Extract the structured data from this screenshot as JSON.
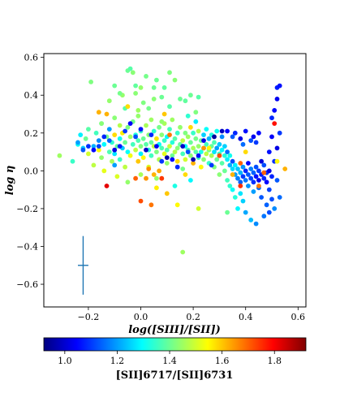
{
  "chart_data": {
    "type": "scatter",
    "xlabel": "log([SIII]/[SII])",
    "ylabel": "log η",
    "xlim": [
      -0.37,
      0.63
    ],
    "ylim": [
      -0.72,
      0.62
    ],
    "xticks": [
      -0.2,
      0.0,
      0.2,
      0.4,
      0.6
    ],
    "xtick_labels": [
      "−0.2",
      "0.0",
      "0.2",
      "0.4",
      "0.6"
    ],
    "yticks": [
      -0.6,
      -0.4,
      -0.2,
      0.0,
      0.2,
      0.4,
      0.6
    ],
    "ytick_labels": [
      "−0.6",
      "−0.4",
      "−0.2",
      "0.0",
      "0.2",
      "0.4",
      "0.6"
    ],
    "grid": false,
    "colormap": "jet",
    "colorbar": {
      "label": "[SII]6717/[SII]6731",
      "range": [
        0.92,
        1.92
      ],
      "ticks": [
        1.0,
        1.2,
        1.4,
        1.6,
        1.8
      ],
      "tick_labels": [
        "1.0",
        "1.2",
        "1.4",
        "1.6",
        "1.8"
      ],
      "position": "bottom"
    },
    "error_bar": {
      "x": -0.22,
      "y": -0.5,
      "xerr": 0.02,
      "yerr": 0.155,
      "color": "#1f77b4"
    },
    "points": [
      [
        -0.31,
        0.08,
        1.45
      ],
      [
        -0.26,
        0.05,
        1.35
      ],
      [
        -0.24,
        0.14,
        1.3
      ],
      [
        -0.23,
        0.19,
        1.28
      ],
      [
        -0.22,
        0.12,
        1.25
      ],
      [
        -0.21,
        0.17,
        1.4
      ],
      [
        -0.2,
        0.09,
        1.5
      ],
      [
        -0.2,
        0.22,
        1.38
      ],
      [
        -0.19,
        0.47,
        1.42
      ],
      [
        -0.18,
        0.13,
        1.22
      ],
      [
        -0.18,
        0.03,
        1.48
      ],
      [
        -0.17,
        0.2,
        1.36
      ],
      [
        -0.16,
        0.11,
        1.55
      ],
      [
        -0.16,
        0.16,
        1.18
      ],
      [
        -0.15,
        0.07,
        1.44
      ],
      [
        -0.15,
        0.25,
        1.33
      ],
      [
        -0.14,
        0.14,
        1.29
      ],
      [
        -0.14,
        0.0,
        1.52
      ],
      [
        -0.13,
        0.18,
        1.41
      ],
      [
        -0.13,
        0.3,
        1.62
      ],
      [
        -0.12,
        0.1,
        1.37
      ],
      [
        -0.12,
        0.22,
        1.2
      ],
      [
        -0.11,
        0.05,
        1.46
      ],
      [
        -0.11,
        0.15,
        1.34
      ],
      [
        -0.1,
        0.19,
        1.58
      ],
      [
        -0.1,
        0.09,
        1.27
      ],
      [
        -0.1,
        0.28,
        1.43
      ],
      [
        -0.09,
        0.13,
        1.39
      ],
      [
        -0.09,
        -0.03,
        1.51
      ],
      [
        -0.08,
        0.17,
        1.31
      ],
      [
        -0.08,
        0.24,
        1.47
      ],
      [
        -0.08,
        0.06,
        1.35
      ],
      [
        -0.07,
        0.4,
        1.44
      ],
      [
        -0.07,
        0.12,
        1.24
      ],
      [
        -0.07,
        0.2,
        1.56
      ],
      [
        -0.06,
        0.15,
        1.4
      ],
      [
        -0.06,
        0.02,
        1.48
      ],
      [
        -0.06,
        0.33,
        1.38
      ],
      [
        -0.05,
        0.1,
        1.3
      ],
      [
        -0.05,
        0.23,
        1.42
      ],
      [
        -0.05,
        0.53,
        1.4
      ],
      [
        -0.04,
        0.54,
        1.38
      ],
      [
        -0.04,
        0.18,
        1.45
      ],
      [
        -0.04,
        0.08,
        1.53
      ],
      [
        -0.03,
        0.52,
        1.43
      ],
      [
        -0.03,
        0.14,
        1.36
      ],
      [
        -0.03,
        0.26,
        1.41
      ],
      [
        -0.02,
        0.45,
        1.39
      ],
      [
        -0.02,
        0.11,
        1.48
      ],
      [
        -0.02,
        0.19,
        1.33
      ],
      [
        -0.01,
        0.05,
        1.6
      ],
      [
        -0.01,
        0.16,
        1.37
      ],
      [
        -0.01,
        0.29,
        1.44
      ],
      [
        0.0,
        0.13,
        1.42
      ],
      [
        0.0,
        0.21,
        1.35
      ],
      [
        0.0,
        -0.02,
        1.46
      ],
      [
        0.0,
        0.09,
        1.28
      ],
      [
        0.01,
        0.17,
        1.4
      ],
      [
        0.01,
        0.36,
        1.42
      ],
      [
        0.01,
        0.07,
        1.55
      ],
      [
        0.02,
        0.14,
        1.38
      ],
      [
        0.02,
        0.24,
        1.46
      ],
      [
        0.02,
        0.5,
        1.41
      ],
      [
        0.03,
        0.11,
        1.33
      ],
      [
        0.03,
        0.19,
        1.43
      ],
      [
        0.03,
        0.02,
        1.51
      ],
      [
        0.04,
        0.15,
        1.39
      ],
      [
        0.04,
        0.27,
        1.45
      ],
      [
        0.04,
        0.08,
        1.36
      ],
      [
        0.05,
        0.13,
        1.48
      ],
      [
        0.05,
        0.21,
        1.34
      ],
      [
        0.05,
        0.44,
        1.4
      ],
      [
        0.06,
        0.1,
        1.42
      ],
      [
        0.06,
        0.17,
        1.57
      ],
      [
        0.06,
        -0.04,
        1.44
      ],
      [
        0.07,
        0.14,
        1.3
      ],
      [
        0.07,
        0.23,
        1.41
      ],
      [
        0.07,
        0.06,
        1.47
      ],
      [
        0.08,
        0.12,
        1.37
      ],
      [
        0.08,
        0.19,
        1.43
      ],
      [
        0.08,
        0.39,
        1.4
      ],
      [
        0.09,
        0.09,
        1.52
      ],
      [
        0.09,
        0.16,
        1.35
      ],
      [
        0.09,
        0.25,
        1.46
      ],
      [
        0.1,
        0.11,
        1.38
      ],
      [
        0.1,
        0.04,
        1.44
      ],
      [
        0.1,
        0.18,
        1.29
      ],
      [
        0.11,
        0.13,
        1.49
      ],
      [
        0.11,
        0.22,
        1.36
      ],
      [
        0.11,
        0.52,
        1.42
      ],
      [
        0.12,
        0.08,
        1.4
      ],
      [
        0.12,
        0.15,
        1.33
      ],
      [
        0.12,
        0.27,
        1.45
      ],
      [
        0.13,
        0.1,
        1.47
      ],
      [
        0.13,
        0.17,
        1.38
      ],
      [
        0.13,
        -0.08,
        1.32
      ],
      [
        0.14,
        0.12,
        1.43
      ],
      [
        0.14,
        0.2,
        1.35
      ],
      [
        0.14,
        0.05,
        1.58
      ],
      [
        0.15,
        0.14,
        1.39
      ],
      [
        0.15,
        0.23,
        1.44
      ],
      [
        0.15,
        0.38,
        1.4
      ],
      [
        0.16,
        0.09,
        1.36
      ],
      [
        0.16,
        0.16,
        1.48
      ],
      [
        0.16,
        0.01,
        1.41
      ],
      [
        0.17,
        0.13,
        1.3
      ],
      [
        0.17,
        0.2,
        1.42
      ],
      [
        0.17,
        0.06,
        1.5
      ],
      [
        0.18,
        0.11,
        1.37
      ],
      [
        0.18,
        0.18,
        1.45
      ],
      [
        0.18,
        0.29,
        1.34
      ],
      [
        0.19,
        0.08,
        1.43
      ],
      [
        0.19,
        0.15,
        1.4
      ],
      [
        0.19,
        -0.05,
        1.29
      ],
      [
        0.2,
        0.12,
        1.46
      ],
      [
        0.2,
        0.2,
        1.35
      ],
      [
        0.2,
        0.04,
        1.62
      ],
      [
        0.21,
        0.1,
        1.38
      ],
      [
        0.21,
        0.17,
        1.41
      ],
      [
        0.21,
        0.26,
        1.28
      ],
      [
        0.22,
        0.13,
        1.44
      ],
      [
        0.22,
        0.07,
        1.36
      ],
      [
        0.22,
        0.21,
        1.47
      ],
      [
        0.23,
        0.1,
        1.32
      ],
      [
        0.23,
        0.16,
        1.4
      ],
      [
        0.23,
        0.02,
        1.55
      ],
      [
        0.24,
        0.12,
        1.38
      ],
      [
        0.24,
        0.19,
        1.25
      ],
      [
        0.24,
        0.06,
        1.43
      ],
      [
        0.25,
        0.14,
        1.36
      ],
      [
        0.25,
        0.09,
        1.48
      ],
      [
        0.25,
        0.22,
        1.3
      ],
      [
        0.26,
        0.11,
        1.41
      ],
      [
        0.26,
        0.04,
        1.35
      ],
      [
        0.26,
        0.17,
        1.22
      ],
      [
        0.27,
        0.13,
        1.39
      ],
      [
        0.27,
        0.08,
        1.46
      ],
      [
        0.27,
        0.19,
        1.33
      ],
      [
        0.28,
        0.1,
        1.27
      ],
      [
        0.28,
        0.02,
        1.42
      ],
      [
        0.28,
        0.15,
        1.37
      ],
      [
        0.29,
        0.12,
        1.2
      ],
      [
        0.29,
        0.06,
        1.4
      ],
      [
        0.29,
        0.21,
        1.31
      ],
      [
        0.3,
        0.09,
        1.35
      ],
      [
        0.3,
        0.14,
        1.24
      ],
      [
        0.3,
        -0.02,
        1.43
      ],
      [
        0.31,
        0.11,
        1.29
      ],
      [
        0.31,
        0.04,
        1.38
      ],
      [
        0.31,
        0.18,
        1.18
      ],
      [
        0.32,
        0.08,
        1.33
      ],
      [
        0.32,
        0.13,
        1.25
      ],
      [
        0.32,
        0.0,
        1.4
      ],
      [
        0.33,
        0.06,
        1.28
      ],
      [
        0.33,
        0.1,
        1.15
      ],
      [
        0.33,
        -0.05,
        1.36
      ],
      [
        0.34,
        0.03,
        1.22
      ],
      [
        0.34,
        0.08,
        1.31
      ],
      [
        0.34,
        -0.08,
        1.34
      ],
      [
        0.35,
        0.01,
        1.26
      ],
      [
        0.35,
        0.05,
        1.12
      ],
      [
        0.35,
        -0.1,
        1.3
      ],
      [
        0.36,
        -0.02,
        1.2
      ],
      [
        0.36,
        0.03,
        1.28
      ],
      [
        0.36,
        -0.14,
        1.33
      ],
      [
        0.37,
        -0.04,
        1.17
      ],
      [
        0.37,
        0.01,
        1.24
      ],
      [
        0.37,
        -0.2,
        1.29
      ],
      [
        0.38,
        -0.06,
        1.14
      ],
      [
        0.38,
        -0.01,
        1.22
      ],
      [
        0.38,
        -0.12,
        1.27
      ],
      [
        0.39,
        -0.03,
        1.1
      ],
      [
        0.39,
        0.02,
        1.19
      ],
      [
        0.39,
        -0.16,
        1.25
      ],
      [
        0.4,
        -0.05,
        1.16
      ],
      [
        0.4,
        0.0,
        1.08
      ],
      [
        0.4,
        -0.22,
        1.21
      ],
      [
        0.41,
        -0.02,
        1.13
      ],
      [
        0.41,
        -0.08,
        1.19
      ],
      [
        0.41,
        0.04,
        1.05
      ],
      [
        0.42,
        -0.04,
        1.11
      ],
      [
        0.42,
        0.01,
        1.17
      ],
      [
        0.42,
        -0.26,
        1.23
      ],
      [
        0.43,
        -0.06,
        1.09
      ],
      [
        0.43,
        -0.01,
        1.14
      ],
      [
        0.43,
        -0.11,
        1.2
      ],
      [
        0.44,
        -0.03,
        1.06
      ],
      [
        0.44,
        0.02,
        1.12
      ],
      [
        0.44,
        -0.28,
        1.18
      ],
      [
        0.45,
        -0.05,
        1.03
      ],
      [
        0.45,
        -0.09,
        1.15
      ],
      [
        0.45,
        0.0,
        1.1
      ],
      [
        0.46,
        -0.02,
        1.07
      ],
      [
        0.46,
        -0.14,
        1.13
      ],
      [
        0.46,
        0.05,
        1.01
      ],
      [
        0.47,
        -0.04,
        1.08
      ],
      [
        0.47,
        -0.24,
        1.16
      ],
      [
        0.47,
        0.03,
        1.12
      ],
      [
        0.48,
        -0.06,
        1.05
      ],
      [
        0.48,
        -0.01,
        1.09
      ],
      [
        0.48,
        -0.18,
        1.14
      ],
      [
        0.49,
        0.0,
        1.02
      ],
      [
        0.49,
        -0.1,
        1.11
      ],
      [
        0.49,
        0.1,
        1.06
      ],
      [
        0.5,
        -0.03,
        1.08
      ],
      [
        0.5,
        0.18,
        1.04
      ],
      [
        0.5,
        -0.15,
        1.12
      ],
      [
        0.51,
        0.25,
        1.78
      ],
      [
        0.51,
        0.32,
        1.05
      ],
      [
        0.51,
        0.05,
        1.09
      ],
      [
        0.52,
        0.44,
        1.07
      ],
      [
        0.52,
        0.38,
        1.03
      ],
      [
        0.52,
        -0.05,
        1.13
      ],
      [
        0.53,
        0.45,
        1.06
      ],
      [
        0.53,
        0.2,
        1.1
      ],
      [
        0.53,
        -0.14,
        1.15
      ],
      [
        0.52,
        0.12,
        1.02
      ],
      [
        0.51,
        -0.2,
        1.18
      ],
      [
        0.5,
        0.28,
        1.08
      ],
      [
        0.49,
        -0.22,
        1.12
      ],
      [
        0.45,
        0.2,
        1.05
      ],
      [
        0.44,
        0.15,
        1.1
      ],
      [
        0.43,
        0.18,
        1.03
      ],
      [
        0.42,
        0.16,
        1.12
      ],
      [
        0.4,
        0.21,
        1.06
      ],
      [
        0.39,
        0.14,
        1.15
      ],
      [
        0.38,
        0.17,
        1.02
      ],
      [
        0.36,
        0.2,
        1.08
      ],
      [
        0.35,
        0.18,
        1.13
      ],
      [
        0.33,
        0.21,
        1.05
      ],
      [
        0.31,
        0.21,
        0.98
      ],
      [
        0.3,
        0.08,
        1.72
      ],
      [
        0.28,
        0.18,
        0.95
      ],
      [
        0.27,
        0.03,
        1.1
      ],
      [
        0.24,
        0.16,
        1.02
      ],
      [
        0.22,
        0.08,
        1.06
      ],
      [
        0.2,
        0.06,
        0.97
      ],
      [
        0.18,
        0.1,
        1.12
      ],
      [
        0.16,
        0.13,
        1.0
      ],
      [
        0.14,
        0.02,
        1.08
      ],
      [
        0.12,
        0.06,
        1.05
      ],
      [
        0.1,
        0.07,
        0.96
      ],
      [
        0.08,
        0.05,
        1.1
      ],
      [
        0.06,
        0.13,
        1.03
      ],
      [
        0.04,
        0.19,
        1.08
      ],
      [
        0.02,
        0.11,
        0.99
      ],
      [
        0.0,
        0.22,
        1.06
      ],
      [
        -0.02,
        0.18,
        1.12
      ],
      [
        -0.04,
        0.25,
        1.04
      ],
      [
        -0.06,
        0.21,
        1.1
      ],
      [
        -0.08,
        0.13,
        1.07
      ],
      [
        -0.1,
        0.11,
        1.02
      ],
      [
        -0.12,
        0.16,
        1.14
      ],
      [
        -0.14,
        0.18,
        1.08
      ],
      [
        -0.16,
        0.13,
        1.11
      ],
      [
        -0.18,
        0.11,
        1.05
      ],
      [
        -0.2,
        0.13,
        1.09
      ],
      [
        -0.22,
        0.11,
        1.13
      ],
      [
        -0.24,
        0.15,
        1.2
      ],
      [
        -0.1,
        0.03,
        1.2
      ],
      [
        -0.13,
        -0.08,
        1.82
      ],
      [
        -0.02,
        -0.04,
        1.7
      ],
      [
        0.03,
        0.01,
        1.66
      ],
      [
        0.0,
        -0.16,
        1.72
      ],
      [
        0.04,
        -0.18,
        1.68
      ],
      [
        0.08,
        -0.04,
        1.74
      ],
      [
        0.07,
        0.0,
        1.63
      ],
      [
        0.1,
        -0.12,
        1.6
      ],
      [
        0.02,
        -0.04,
        1.65
      ],
      [
        0.06,
        -0.09,
        1.56
      ],
      [
        0.11,
        0.19,
        1.68
      ],
      [
        -0.16,
        0.31,
        1.62
      ],
      [
        -0.05,
        0.34,
        1.58
      ],
      [
        0.09,
        0.3,
        1.6
      ],
      [
        0.19,
        0.23,
        1.58
      ],
      [
        0.26,
        0.12,
        1.55
      ],
      [
        0.35,
        -0.02,
        1.62
      ],
      [
        0.38,
        0.04,
        1.7
      ],
      [
        0.45,
        -0.08,
        1.68
      ],
      [
        0.55,
        0.01,
        1.62
      ],
      [
        0.38,
        -0.08,
        1.75
      ],
      [
        0.17,
        -0.02,
        1.58
      ],
      [
        0.05,
        -0.02,
        1.62
      ],
      [
        0.14,
        -0.18,
        1.55
      ],
      [
        0.22,
        -0.2,
        1.5
      ],
      [
        0.24,
        0.12,
        1.65
      ],
      [
        0.4,
        0.1,
        1.58
      ],
      [
        0.52,
        0.05,
        1.55
      ],
      [
        0.47,
        -0.01,
        1.7
      ],
      [
        0.33,
        -0.22,
        1.4
      ],
      [
        -0.05,
        -0.06,
        1.44
      ],
      [
        -0.01,
        0.32,
        1.45
      ],
      [
        0.03,
        0.33,
        1.41
      ],
      [
        0.08,
        0.26,
        1.44
      ],
      [
        0.11,
        0.34,
        1.38
      ],
      [
        0.13,
        0.48,
        1.43
      ],
      [
        0.06,
        0.48,
        1.4
      ],
      [
        0.0,
        0.44,
        1.44
      ],
      [
        0.17,
        0.37,
        1.39
      ],
      [
        0.05,
        0.38,
        1.43
      ],
      [
        0.16,
        -0.43,
        1.45
      ],
      [
        0.21,
        0.31,
        1.42
      ],
      [
        0.22,
        0.39,
        1.38
      ],
      [
        0.19,
        0.4,
        1.4
      ],
      [
        -0.12,
        0.37,
        1.44
      ],
      [
        -0.08,
        0.41,
        1.41
      ],
      [
        -0.1,
        0.45,
        1.4
      ],
      [
        -0.02,
        0.41,
        1.43
      ],
      [
        0.09,
        0.44,
        1.39
      ],
      [
        -0.15,
        0.25,
        1.43
      ]
    ]
  }
}
